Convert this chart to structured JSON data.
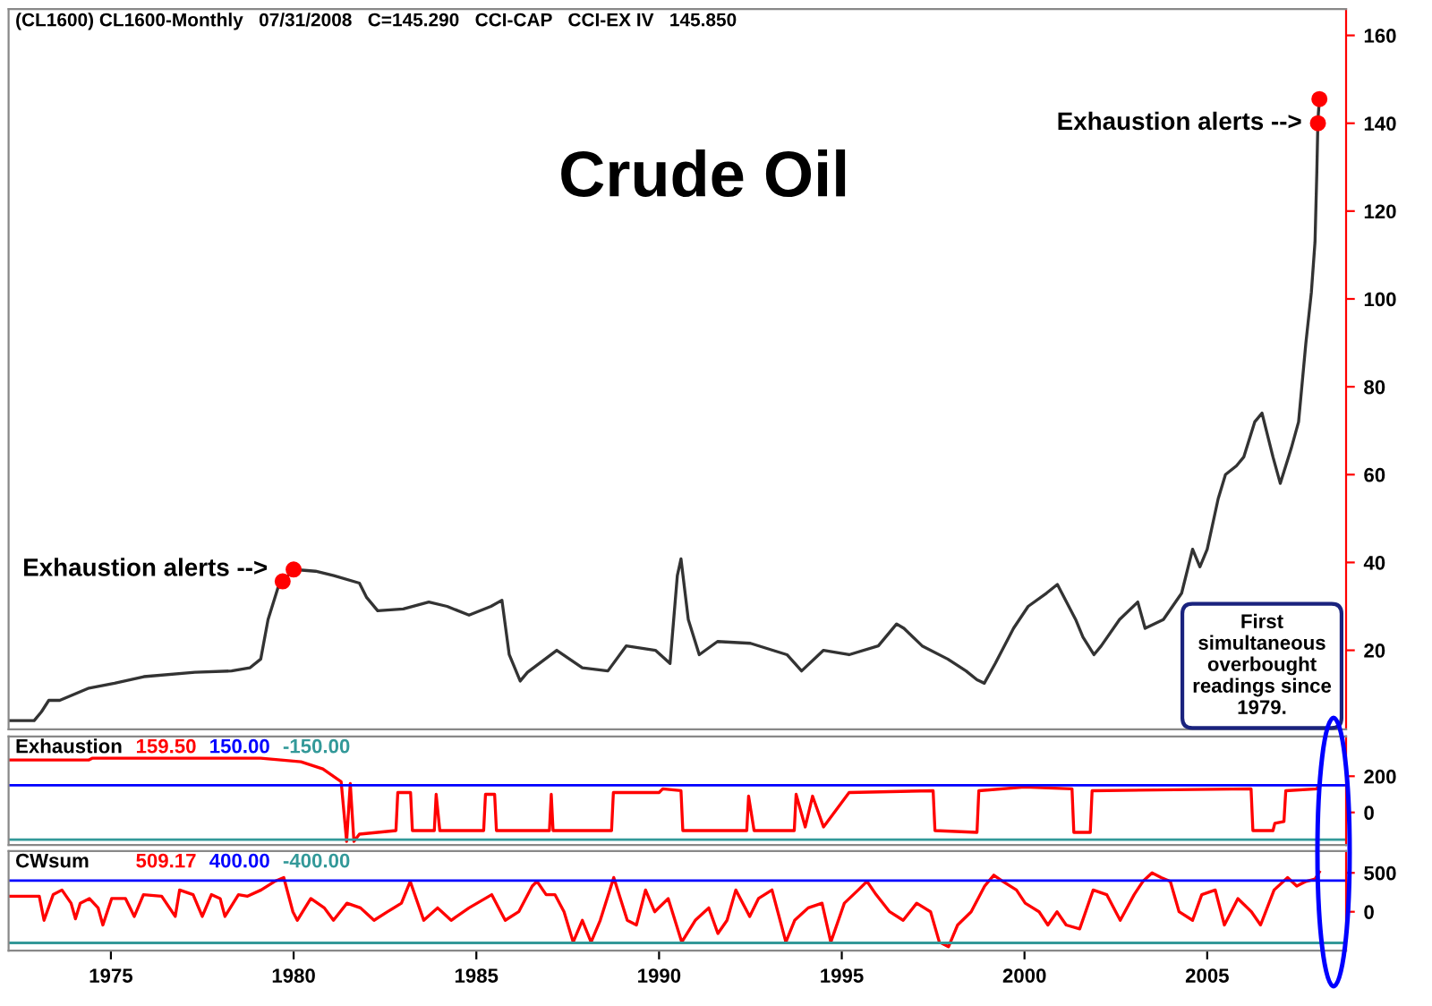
{
  "chart_data": [
    {
      "type": "line",
      "title": "Crude Oil",
      "subtitle": "(CL1600) CL1600-Monthly   07/31/2008   C=145.290   CCI-CAP   CCI-EX IV   145.850",
      "xlim": [
        1972.2,
        2008.8
      ],
      "ylim": [
        2,
        166
      ],
      "yticks": [
        20,
        40,
        60,
        80,
        100,
        120,
        140,
        160
      ],
      "tick_labels": "y",
      "grid": false,
      "legend": false,
      "annotations": [
        {
          "text": "Exhaustion alerts -->",
          "x": 1979.7,
          "y": 38.4
        },
        {
          "text": "Exhaustion alerts -->",
          "x": 2008.0,
          "y": 140
        },
        "First simultaneous overbought readings since 1979."
      ],
      "series": [
        {
          "color": "#333333",
          "x": [
            1972.2,
            1972.9,
            1973.1,
            1973.3,
            1973.6,
            1974.4,
            1975.1,
            1975.9,
            1977.3,
            1978.3,
            1978.8,
            1979.1,
            1979.3,
            1979.6,
            1979.7,
            1980.0,
            1980.6,
            1981.1,
            1981.8,
            1982.0,
            1982.3,
            1983.0,
            1983.7,
            1984.2,
            1984.8,
            1985.4,
            1985.7,
            1985.9,
            1986.2,
            1986.4,
            1987.2,
            1987.9,
            1988.6,
            1989.1,
            1989.9,
            1990.3,
            1990.5,
            1990.6,
            1990.8,
            1991.1,
            1991.6,
            1992.5,
            1993.5,
            1993.9,
            1994.5,
            1995.2,
            1996.0,
            1996.5,
            1996.7,
            1997.2,
            1997.9,
            1998.4,
            1998.7,
            1998.9,
            1999.2,
            1999.7,
            2000.1,
            2000.6,
            2000.9,
            2001.4,
            2001.6,
            2001.9,
            2002.1,
            2002.6,
            2003.1,
            2003.3,
            2003.8,
            2004.3,
            2004.6,
            2004.8,
            2005.0,
            2005.3,
            2005.5,
            2005.8,
            2006.0,
            2006.3,
            2006.5,
            2006.8,
            2007.0,
            2007.3,
            2007.5,
            2007.7,
            2007.85,
            2007.95,
            2008.0,
            2008.03,
            2008.07
          ],
          "values": [
            4,
            4,
            6,
            8.6,
            8.6,
            11.4,
            12.5,
            14,
            15,
            15.3,
            16,
            18,
            27,
            35,
            35.7,
            38.4,
            38,
            37,
            35.3,
            32,
            29,
            29.4,
            31,
            30,
            28,
            30,
            31.4,
            19,
            13,
            15,
            20,
            16,
            15.3,
            21,
            20,
            17,
            37,
            40.8,
            27,
            19,
            22,
            21.6,
            19,
            15.3,
            20,
            19,
            21,
            26,
            25,
            21,
            18,
            15.3,
            13.3,
            12.5,
            17,
            25,
            30,
            33,
            35,
            27,
            23,
            19,
            21,
            27,
            31,
            25,
            27,
            33,
            43,
            39,
            43,
            54.5,
            60,
            62,
            64,
            72,
            74,
            64,
            58,
            66,
            72,
            90,
            101.5,
            113,
            129,
            140.8,
            145.5
          ]
        },
        {
          "type": "scatter",
          "color": "#ff0000",
          "marker": "circle",
          "x": [
            1979.7,
            1980.0,
            2008.03,
            2008.07
          ],
          "values": [
            35.7,
            38.4,
            140,
            145.5
          ]
        }
      ]
    },
    {
      "type": "line",
      "title": "Exhaustion",
      "annotations": [
        "159.50"
      ],
      "xlim": [
        1972.2,
        2008.8
      ],
      "ylim": [
        -180,
        420
      ],
      "yticks": [
        0,
        200
      ],
      "tick_labels": "y",
      "grid": false,
      "legend": false,
      "ref_lines": [
        {
          "axis": "y",
          "value": 150,
          "label": "150.00",
          "color": "#0000ff"
        },
        {
          "axis": "y",
          "value": -150,
          "label": "-150.00",
          "color": "#339999"
        }
      ],
      "series": [
        {
          "color": "#ff0000",
          "x": [
            1972.2,
            1974.4,
            1974.5,
            1979.1,
            1980.2,
            1980.8,
            1981.3,
            1981.45,
            1981.55,
            1981.65,
            1981.8,
            1982.8,
            1982.85,
            1983.2,
            1983.25,
            1983.85,
            1983.9,
            1984.0,
            1985.2,
            1985.25,
            1985.5,
            1985.55,
            1987.0,
            1987.05,
            1987.1,
            1988.7,
            1988.75,
            1990.0,
            1990.1,
            1990.6,
            1990.65,
            1992.4,
            1992.45,
            1992.6,
            1993.7,
            1993.75,
            1994.0,
            1994.2,
            1994.5,
            1995.2,
            1997.5,
            1997.55,
            1998.7,
            1998.75,
            2000.0,
            2001.3,
            2001.35,
            2001.8,
            2001.85,
            2006.2,
            2006.25,
            2006.8,
            2006.85,
            2007.1,
            2007.15,
            2008.0,
            2008.07
          ],
          "values": [
            290,
            290,
            300,
            300,
            280,
            240,
            170,
            -160,
            160,
            -160,
            -120,
            -100,
            110,
            110,
            -100,
            -100,
            100,
            -100,
            -100,
            100,
            100,
            -100,
            -100,
            100,
            -100,
            -100,
            110,
            110,
            130,
            120,
            -100,
            -100,
            90,
            -100,
            -100,
            100,
            -80,
            90,
            -80,
            110,
            120,
            -100,
            -110,
            120,
            140,
            130,
            -110,
            -110,
            120,
            130,
            -100,
            -100,
            -60,
            -50,
            120,
            130,
            160
          ]
        }
      ]
    },
    {
      "type": "line",
      "title": "CWsum",
      "annotations": [
        "509.17"
      ],
      "xlim": [
        1972.2,
        2008.8
      ],
      "ylim": [
        -500,
        780
      ],
      "yticks": [
        0,
        500
      ],
      "xticks": [
        1975,
        1980,
        1985,
        1990,
        1995,
        2000,
        2005
      ],
      "grid": false,
      "legend": false,
      "ref_lines": [
        {
          "axis": "y",
          "value": 400,
          "label": "400.00",
          "color": "#0000ff"
        },
        {
          "axis": "y",
          "value": -400,
          "label": "-400.00",
          "color": "#339999"
        }
      ],
      "series": [
        {
          "color": "#ff0000",
          "x": [
            1972.2,
            1973.04,
            1973.17,
            1973.42,
            1973.66,
            1973.91,
            1974.03,
            1974.16,
            1974.41,
            1974.65,
            1974.78,
            1975.02,
            1975.4,
            1975.64,
            1975.89,
            1976.39,
            1976.76,
            1976.88,
            1977.25,
            1977.5,
            1977.75,
            1977.99,
            1978.12,
            1978.49,
            1978.74,
            1979.11,
            1979.48,
            1979.73,
            1979.98,
            1980.1,
            1980.47,
            1980.84,
            1981.09,
            1981.46,
            1981.83,
            1982.2,
            1982.57,
            1982.95,
            1983.19,
            1983.56,
            1983.94,
            1984.31,
            1984.8,
            1985.42,
            1985.79,
            1986.16,
            1986.53,
            1986.66,
            1986.91,
            1987.15,
            1987.4,
            1987.65,
            1987.9,
            1988.14,
            1988.39,
            1988.76,
            1989.13,
            1989.38,
            1989.63,
            1989.88,
            1990.25,
            1990.62,
            1990.99,
            1991.36,
            1991.61,
            1991.86,
            1992.1,
            1992.48,
            1992.72,
            1993.09,
            1993.47,
            1993.71,
            1994.08,
            1994.46,
            1994.7,
            1995.07,
            1995.45,
            1995.69,
            1995.94,
            1996.31,
            1996.68,
            1997.05,
            1997.43,
            1997.67,
            1997.92,
            1998.17,
            1998.54,
            1998.91,
            1999.16,
            1999.41,
            1999.78,
            2000.02,
            2000.4,
            2000.64,
            2000.89,
            2001.14,
            2001.51,
            2001.88,
            2002.25,
            2002.62,
            2003.0,
            2003.24,
            2003.49,
            2003.74,
            2003.99,
            2004.23,
            2004.6,
            2004.85,
            2005.22,
            2005.47,
            2005.84,
            2006.21,
            2006.46,
            2006.83,
            2007.2,
            2007.45,
            2007.7,
            2007.95,
            2008.07
          ],
          "values": [
            200,
            200,
            -110,
            220,
            280,
            110,
            -90,
            110,
            170,
            50,
            -170,
            170,
            170,
            -60,
            220,
            200,
            -60,
            280,
            220,
            -60,
            220,
            170,
            -60,
            220,
            200,
            280,
            390,
            440,
            0,
            -110,
            170,
            50,
            -110,
            110,
            50,
            -110,
            0,
            110,
            390,
            -110,
            50,
            -110,
            50,
            220,
            -110,
            0,
            330,
            390,
            220,
            220,
            0,
            -390,
            -110,
            -390,
            -110,
            440,
            -110,
            -170,
            280,
            0,
            170,
            -390,
            -110,
            50,
            -280,
            -110,
            280,
            -60,
            170,
            280,
            -390,
            -110,
            50,
            110,
            -390,
            110,
            280,
            390,
            220,
            0,
            -110,
            110,
            0,
            -390,
            -450,
            -170,
            0,
            330,
            470,
            390,
            280,
            110,
            0,
            -170,
            0,
            -170,
            -220,
            280,
            220,
            -110,
            220,
            390,
            500,
            440,
            390,
            0,
            -110,
            220,
            280,
            -170,
            170,
            0,
            -170,
            280,
            440,
            330,
            390,
            420,
            510
          ]
        }
      ]
    }
  ]
}
